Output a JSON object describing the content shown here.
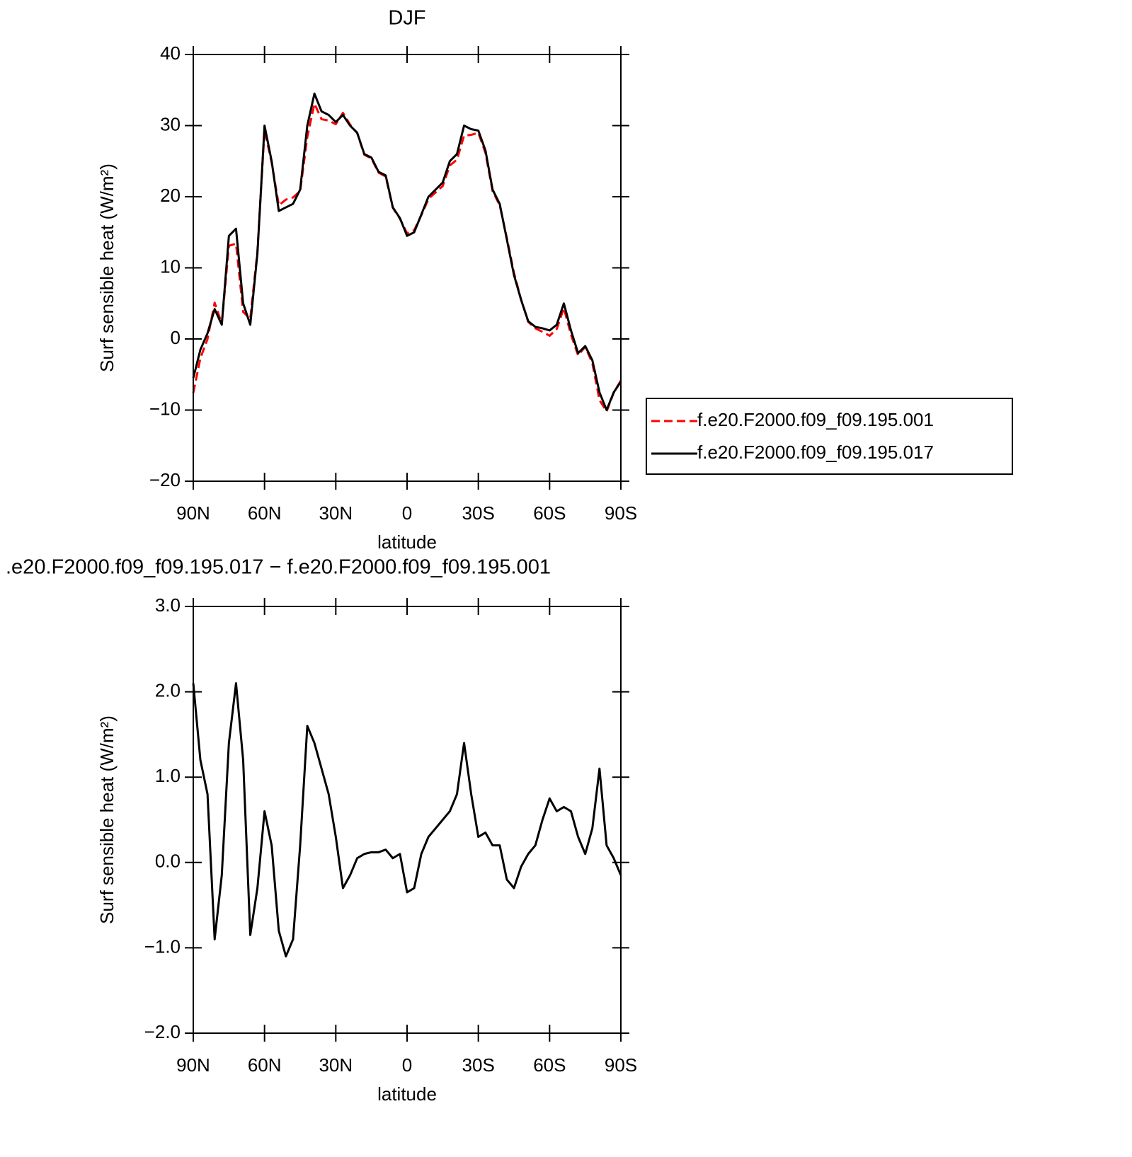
{
  "chart_data": [
    {
      "type": "line",
      "title": "DJF",
      "xlabel": "latitude",
      "ylabel": "Surf sensible heat (W/m²)",
      "xlim": [
        90,
        -90
      ],
      "xticks": [
        {
          "value": 90,
          "label": "90N"
        },
        {
          "value": 60,
          "label": "60N"
        },
        {
          "value": 30,
          "label": "30N"
        },
        0,
        {
          "value": -30,
          "label": "30S"
        },
        {
          "value": -60,
          "label": "60S"
        },
        {
          "value": -90,
          "label": "90S"
        }
      ],
      "ylim": [
        -20,
        40
      ],
      "yticks": [
        {
          "value": -20,
          "label": "−20"
        },
        {
          "value": -10,
          "label": "−10"
        },
        0,
        10,
        20,
        30,
        40
      ],
      "legend": "right",
      "x": [
        90,
        87,
        84,
        81,
        78,
        75,
        72,
        69,
        66,
        63,
        60,
        57,
        54,
        51,
        48,
        45,
        42,
        39,
        36,
        33,
        30,
        27,
        24,
        21,
        18,
        15,
        12,
        9,
        6,
        3,
        0,
        -3,
        -6,
        -9,
        -12,
        -15,
        -18,
        -21,
        -24,
        -27,
        -30,
        -33,
        -36,
        -39,
        -42,
        -45,
        -48,
        -51,
        -54,
        -57,
        -60,
        -63,
        -66,
        -69,
        -72,
        -75,
        -78,
        -81,
        -84,
        -87,
        -90
      ],
      "series": [
        {
          "name": "f.e20.F2000.f09_f09.195.001",
          "color": "#ff0000",
          "dashed": true,
          "values": [
            -7.6,
            -2.7,
            0,
            5.1,
            2.15,
            13.1,
            13.4,
            3.8,
            2.85,
            12.3,
            29.4,
            24.8,
            18.8,
            19.6,
            19.9,
            20.8,
            28.4,
            33.1,
            30.9,
            30.7,
            30.2,
            31.8,
            30.15,
            28.95,
            25.9,
            25.38,
            23.38,
            22.85,
            18.45,
            16.9,
            14.85,
            15.3,
            17.4,
            19.7,
            20.6,
            21.5,
            24.4,
            25.2,
            28.6,
            28.7,
            29,
            26.15,
            20.8,
            18.8,
            14.2,
            9.3,
            5.55,
            2.4,
            1.5,
            1,
            0.45,
            1.4,
            4.35,
            0.6,
            -2.3,
            -1.1,
            -3.4,
            -8.6,
            -10.2,
            -7.55,
            -5.85
          ]
        },
        {
          "name": "f.e20.F2000.f09_f09.195.017",
          "color": "#000000",
          "dashed": false,
          "values": [
            -5.5,
            -1.5,
            0.8,
            4.2,
            2,
            14.5,
            15.5,
            5,
            2,
            12,
            30,
            25,
            18,
            18.5,
            19,
            21,
            30,
            34.5,
            32,
            31.5,
            30.5,
            31.5,
            30,
            29,
            26,
            25.5,
            23.5,
            23,
            18.5,
            17,
            14.5,
            15,
            17.5,
            20,
            21,
            22,
            25,
            26,
            30,
            29.5,
            29.3,
            26.5,
            21,
            19,
            14,
            9,
            5.5,
            2.5,
            1.7,
            1.5,
            1.2,
            2,
            5,
            1.2,
            -2,
            -1,
            -3,
            -7.5,
            -10,
            -7.5,
            -6
          ]
        }
      ]
    },
    {
      "type": "line",
      "title": ".e20.F2000.f09_f09.195.017 − f.e20.F2000.f09_f09.195.001",
      "xlabel": "latitude",
      "ylabel": "Surf sensible heat (W/m²)",
      "xlim": [
        90,
        -90
      ],
      "xticks": [
        {
          "value": 90,
          "label": "90N"
        },
        {
          "value": 60,
          "label": "60N"
        },
        {
          "value": 30,
          "label": "30N"
        },
        0,
        {
          "value": -30,
          "label": "30S"
        },
        {
          "value": -60,
          "label": "60S"
        },
        {
          "value": -90,
          "label": "90S"
        }
      ],
      "ylim": [
        -2,
        3
      ],
      "yticks": [
        {
          "value": -2,
          "label": "−2.0"
        },
        {
          "value": -1,
          "label": "−1.0"
        },
        {
          "value": 0,
          "label": "0.0"
        },
        {
          "value": 1,
          "label": "1.0"
        },
        {
          "value": 2,
          "label": "2.0"
        },
        {
          "value": 3,
          "label": "3.0"
        }
      ],
      "x": [
        90,
        87,
        84,
        81,
        78,
        75,
        72,
        69,
        66,
        63,
        60,
        57,
        54,
        51,
        48,
        45,
        42,
        39,
        36,
        33,
        30,
        27,
        24,
        21,
        18,
        15,
        12,
        9,
        6,
        3,
        0,
        -3,
        -6,
        -9,
        -12,
        -15,
        -18,
        -21,
        -24,
        -27,
        -30,
        -33,
        -36,
        -39,
        -42,
        -45,
        -48,
        -51,
        -54,
        -57,
        -60,
        -63,
        -66,
        -69,
        -72,
        -75,
        -78,
        -81,
        -84,
        -87,
        -90
      ],
      "series": [
        {
          "color": "#000000",
          "dashed": false,
          "values": [
            2.1,
            1.2,
            0.8,
            -0.9,
            -0.15,
            1.4,
            2.1,
            1.2,
            -0.85,
            -0.3,
            0.6,
            0.2,
            -0.8,
            -1.1,
            -0.9,
            0.2,
            1.6,
            1.4,
            1.1,
            0.8,
            0.3,
            -0.3,
            -0.15,
            0.05,
            0.1,
            0.12,
            0.12,
            0.15,
            0.05,
            0.1,
            -0.35,
            -0.3,
            0.1,
            0.3,
            0.4,
            0.5,
            0.6,
            0.8,
            1.4,
            0.8,
            0.3,
            0.35,
            0.2,
            0.2,
            -0.2,
            -0.3,
            -0.05,
            0.1,
            0.2,
            0.5,
            0.75,
            0.6,
            0.65,
            0.6,
            0.3,
            0.1,
            0.4,
            1.1,
            0.2,
            0.05,
            -0.15
          ]
        }
      ]
    }
  ]
}
